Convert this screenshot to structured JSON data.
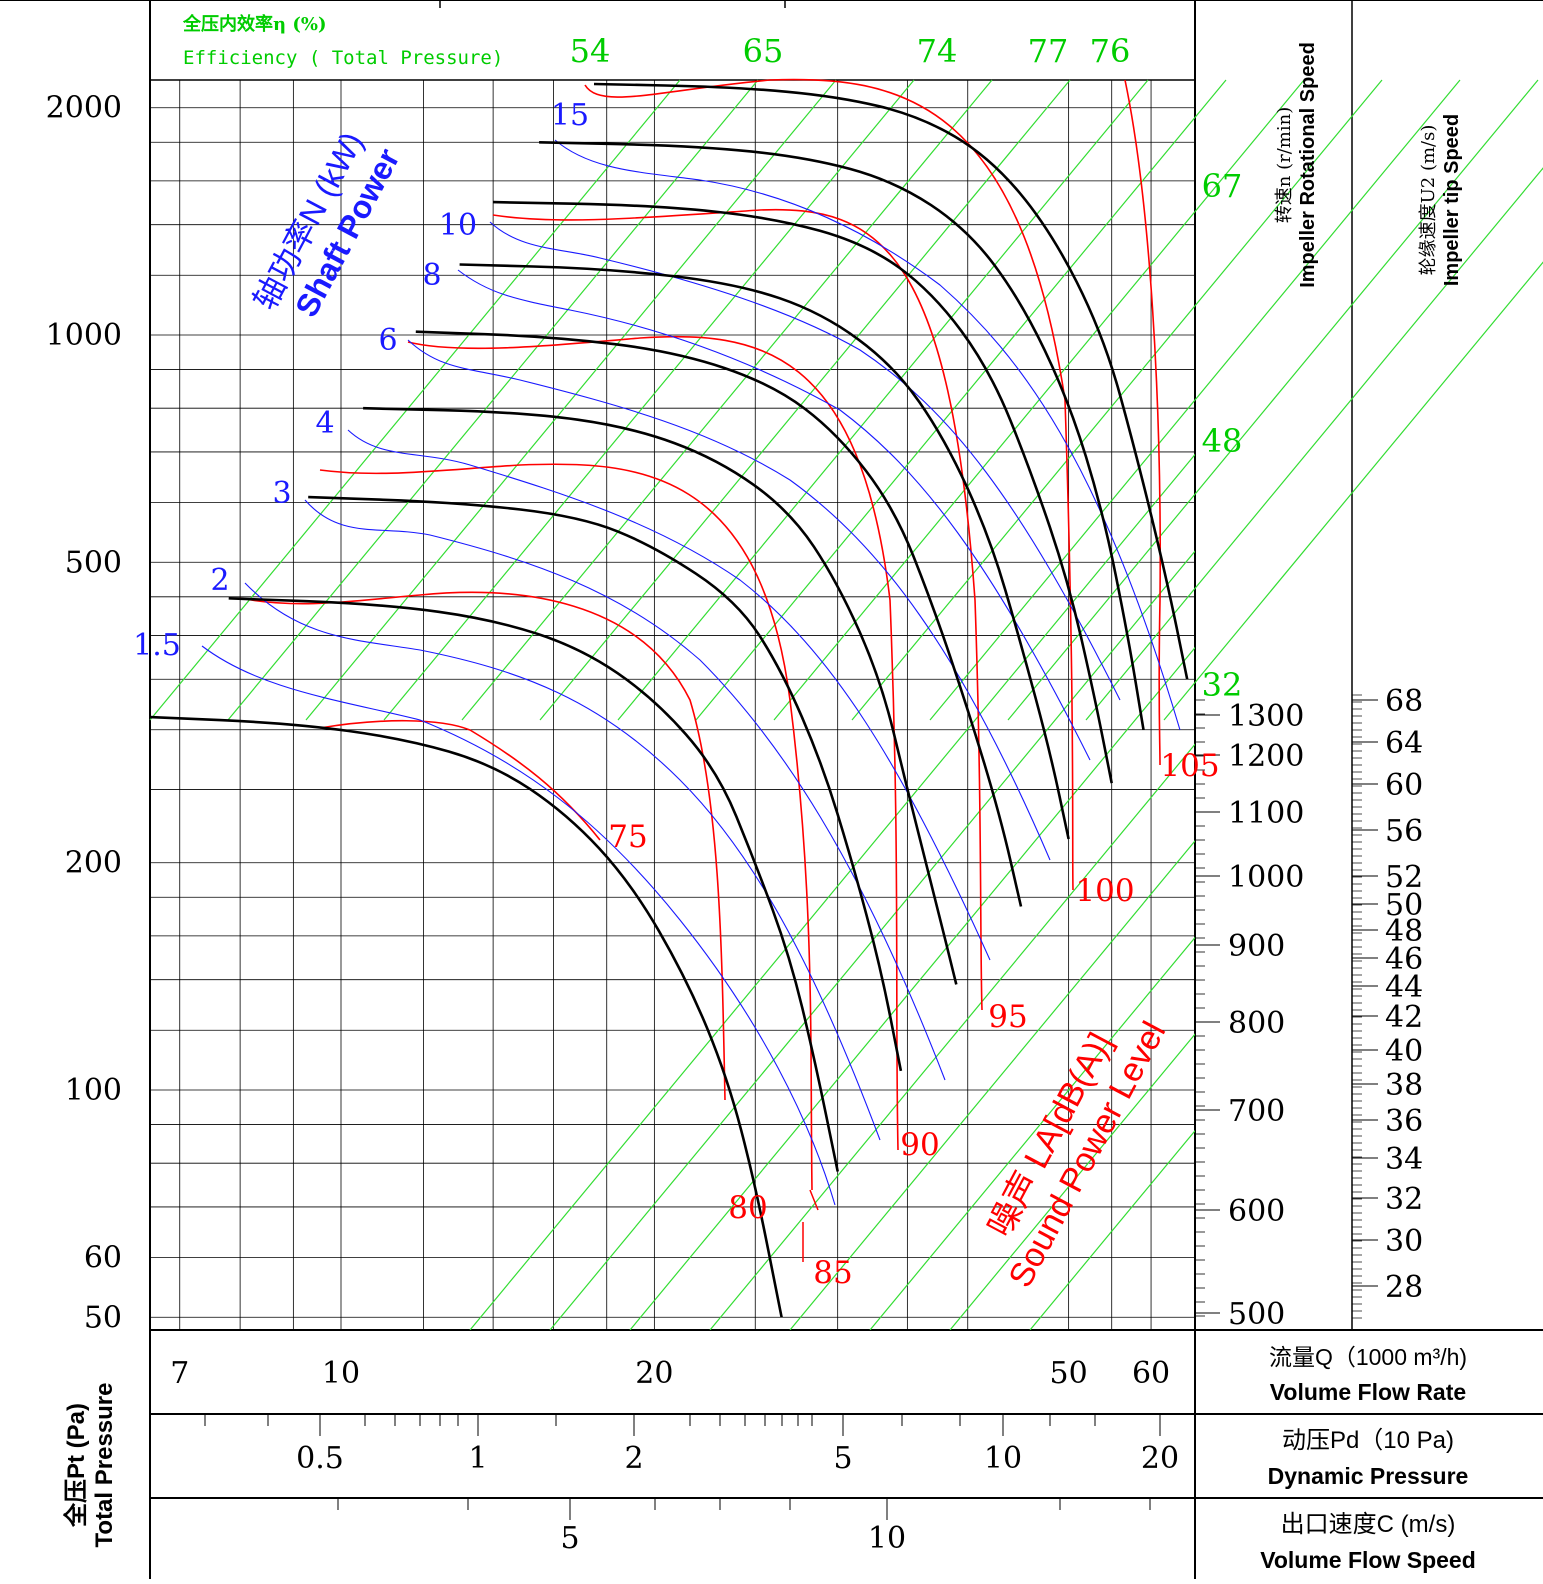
{
  "chart_data": {
    "type": "line",
    "colors": {
      "pressure_curves": "#000000",
      "power_curves": "#1a1aff",
      "efficiency_curves": "#ff0000",
      "speed_diagonals": "#33dd33",
      "efficiency_labels": "#00cc00",
      "power_labels": "#1a1aff",
      "noise_labels": "#ff0000",
      "grid": "#000000"
    },
    "axes": {
      "y_title_cn": "全压Pt (Pa)",
      "y_title_en": "Total Pressure",
      "y_scale": "log",
      "y_range": [
        50,
        2300
      ],
      "y_ticks": [
        {
          "value": 50,
          "label": "50"
        },
        {
          "value": 60,
          "label": "60"
        },
        {
          "value": 100,
          "label": "100"
        },
        {
          "value": 200,
          "label": "200"
        },
        {
          "value": 500,
          "label": "500"
        },
        {
          "value": 1000,
          "label": "1000"
        },
        {
          "value": 2000,
          "label": "2000"
        }
      ],
      "x_scale": "log",
      "x_range": [
        6.5,
        67
      ],
      "x_ticks": [
        {
          "value": 7,
          "label": "7"
        },
        {
          "value": 10,
          "label": "10"
        },
        {
          "value": 20,
          "label": "20"
        },
        {
          "value": 50,
          "label": "50"
        },
        {
          "value": 60,
          "label": "60"
        }
      ],
      "x_title_cn": "流量Q（1000 m³/h)",
      "x_title_en": "Volume Flow Rate",
      "pd_ticks": [
        {
          "value": 0.5,
          "label": "0.5"
        },
        {
          "value": 1,
          "label": "1"
        },
        {
          "value": 2,
          "label": "2"
        },
        {
          "value": 5,
          "label": "5"
        },
        {
          "value": 10,
          "label": "10"
        },
        {
          "value": 20,
          "label": "20"
        }
      ],
      "pd_title_cn": "动压Pd（10 Pa)",
      "pd_title_en": "Dynamic Pressure",
      "c_ticks": [
        {
          "value": 5,
          "label": "5"
        },
        {
          "value": 10,
          "label": "10"
        }
      ],
      "c_title_cn": "出口速度C (m/s)",
      "c_title_en": "Volume Flow Speed",
      "speed_title_cn": "转速n (r/min)",
      "speed_title_en": "Impeller Rotational Speed",
      "speed_ticks": [
        "1300",
        "1200",
        "1100",
        "1000",
        "900",
        "800",
        "700",
        "600",
        "500"
      ],
      "tip_title_cn": "轮缘速度U2 (m/s)",
      "tip_title_en": "Impeller tip Speed",
      "tip_ticks": [
        "68",
        "64",
        "60",
        "56",
        "52",
        "50",
        "48",
        "46",
        "44",
        "42",
        "40",
        "38",
        "36",
        "34",
        "32",
        "30",
        "28"
      ]
    },
    "efficiency_header_cn": "全压内效率η (%)",
    "efficiency_header_en": "Efficiency ( Total Pressure)",
    "efficiency_labels": [
      "54",
      "65",
      "74",
      "77",
      "76",
      "67",
      "48",
      "32"
    ],
    "power_title_cn": "轴功率N (kW)",
    "power_title_en": "Shaft Power",
    "power_labels": [
      "15",
      "10",
      "8",
      "6",
      "4",
      "3",
      "2",
      "1.5"
    ],
    "noise_title_cn": "噪声 LA[dB(A)]",
    "noise_title_en": "Sound Power Level",
    "noise_labels": [
      "75",
      "80",
      "85",
      "90",
      "95",
      "100",
      "105"
    ],
    "pressure_curves": [
      {
        "speed": 1300,
        "points": [
          [
            17.5,
            2150
          ],
          [
            24,
            2130
          ],
          [
            30,
            2070
          ],
          [
            36,
            1950
          ],
          [
            42,
            1720
          ],
          [
            48,
            1380
          ],
          [
            54,
            1000
          ],
          [
            58,
            700
          ],
          [
            62,
            480
          ],
          [
            65,
            350
          ]
        ]
      },
      {
        "speed": 1200,
        "points": [
          [
            15.5,
            1800
          ],
          [
            22,
            1780
          ],
          [
            28,
            1720
          ],
          [
            34,
            1600
          ],
          [
            40,
            1380
          ],
          [
            45,
            1110
          ],
          [
            50,
            820
          ],
          [
            54,
            580
          ],
          [
            57,
            400
          ],
          [
            59,
            300
          ]
        ]
      },
      {
        "speed": 1100,
        "points": [
          [
            14,
            1500
          ],
          [
            20,
            1485
          ],
          [
            26,
            1430
          ],
          [
            32,
            1320
          ],
          [
            37,
            1140
          ],
          [
            42,
            900
          ],
          [
            46,
            660
          ],
          [
            50,
            470
          ],
          [
            53,
            330
          ],
          [
            55,
            255
          ]
        ]
      },
      {
        "speed": 1000,
        "points": [
          [
            13,
            1240
          ],
          [
            18,
            1225
          ],
          [
            24,
            1170
          ],
          [
            29,
            1070
          ],
          [
            34,
            910
          ],
          [
            38,
            730
          ],
          [
            42,
            540
          ],
          [
            45,
            390
          ],
          [
            48,
            280
          ],
          [
            50,
            215
          ]
        ]
      },
      {
        "speed": 900,
        "points": [
          [
            11.8,
            1010
          ],
          [
            16,
            995
          ],
          [
            21,
            950
          ],
          [
            26,
            860
          ],
          [
            30,
            740
          ],
          [
            34,
            590
          ],
          [
            37,
            440
          ],
          [
            40,
            320
          ],
          [
            43,
            230
          ],
          [
            45,
            175
          ]
        ]
      },
      {
        "speed": 800,
        "points": [
          [
            10.5,
            800
          ],
          [
            15,
            790
          ],
          [
            19,
            755
          ],
          [
            23,
            685
          ],
          [
            27,
            585
          ],
          [
            30,
            470
          ],
          [
            33,
            350
          ],
          [
            35,
            250
          ],
          [
            37,
            185
          ],
          [
            39,
            138
          ]
        ]
      },
      {
        "speed": 700,
        "points": [
          [
            9.3,
            610
          ],
          [
            13,
            600
          ],
          [
            17,
            575
          ],
          [
            20,
            525
          ],
          [
            24,
            445
          ],
          [
            26.5,
            360
          ],
          [
            29,
            270
          ],
          [
            31,
            200
          ],
          [
            33,
            145
          ],
          [
            34.5,
            106
          ]
        ]
      },
      {
        "speed": 600,
        "points": [
          [
            7.8,
            448
          ],
          [
            11,
            440
          ],
          [
            14,
            420
          ],
          [
            17,
            385
          ],
          [
            20,
            330
          ],
          [
            23,
            265
          ],
          [
            25,
            200
          ],
          [
            27,
            150
          ],
          [
            28.5,
            110
          ],
          [
            30,
            78
          ]
        ]
      },
      {
        "speed": 500,
        "points": [
          [
            6.5,
            312
          ],
          [
            9,
            306
          ],
          [
            11.5,
            292
          ],
          [
            14,
            270
          ],
          [
            16.5,
            232
          ],
          [
            19,
            188
          ],
          [
            21.5,
            140
          ],
          [
            23.5,
            104
          ],
          [
            25,
            75
          ],
          [
            26.5,
            50
          ]
        ]
      }
    ]
  }
}
